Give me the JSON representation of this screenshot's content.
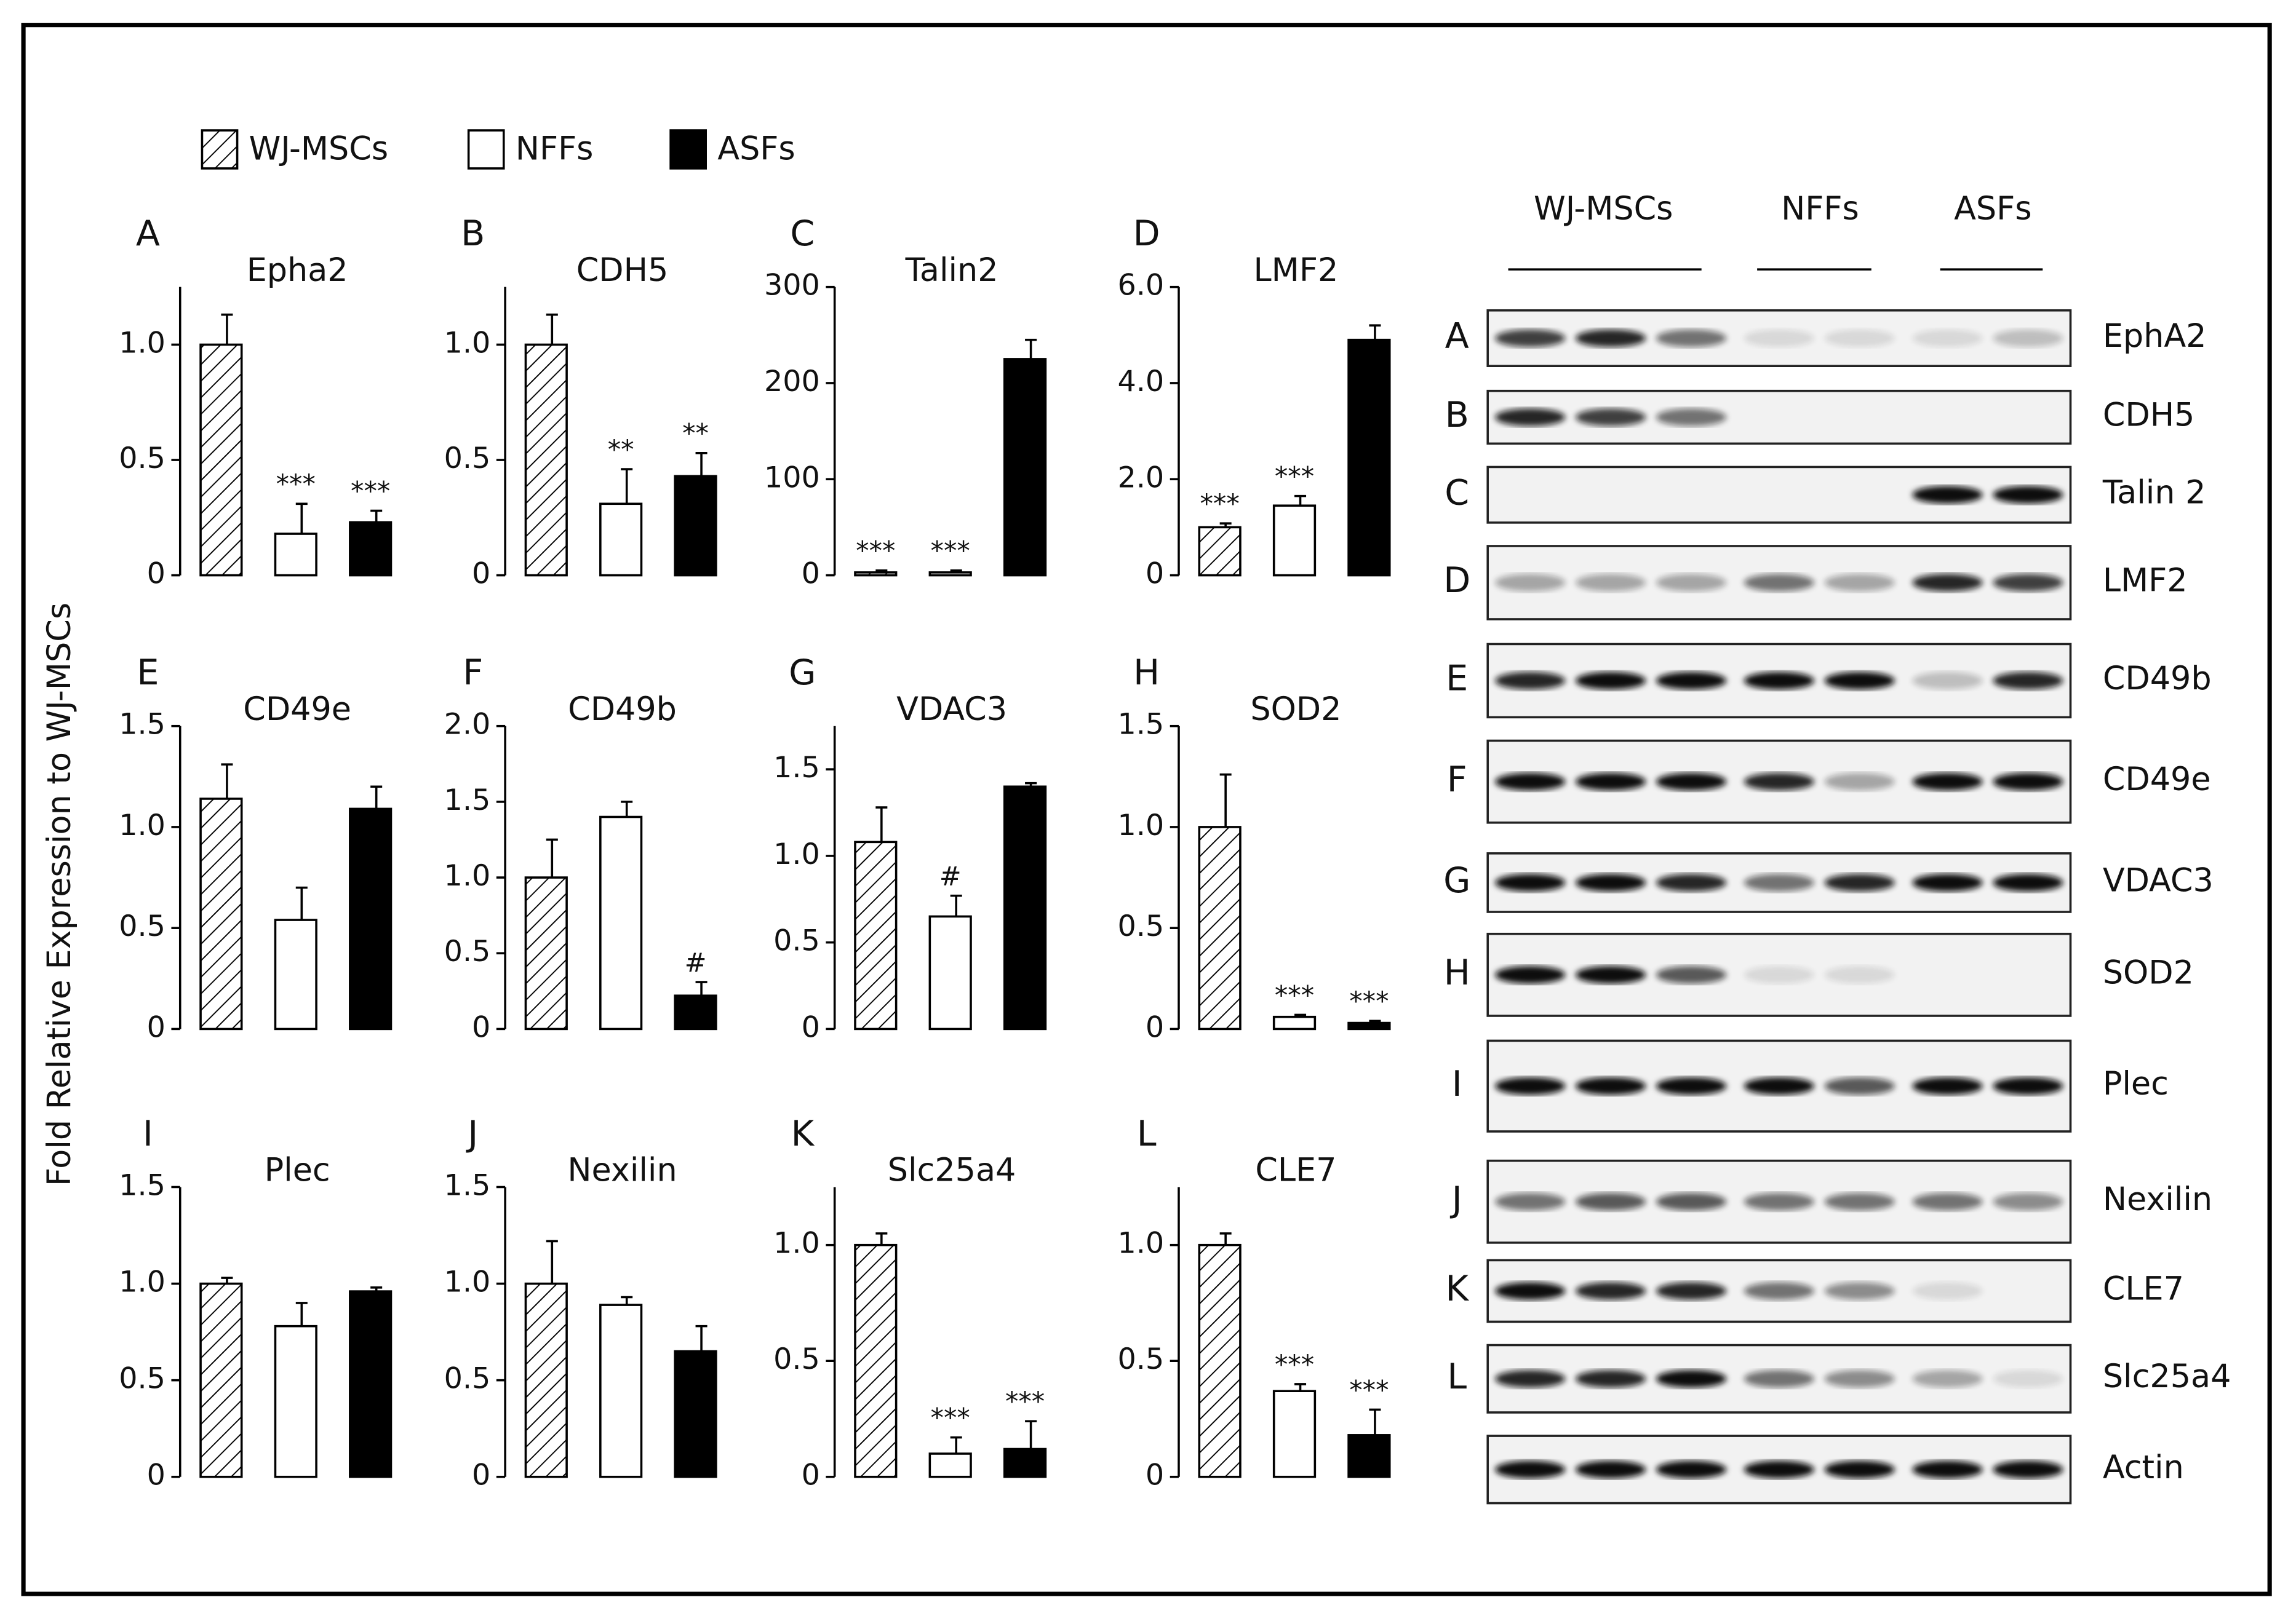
{
  "y_axis_label": "Fold Relative Expression to WJ-MSCs",
  "legend": [
    {
      "name": "WJ-MSCs",
      "fill": "hatch"
    },
    {
      "name": "NFFs",
      "fill": "#ffffff"
    },
    {
      "name": "ASFs",
      "fill": "#000000"
    }
  ],
  "chart_data": [
    {
      "type": "bar",
      "panel": "A",
      "title": "Epha2",
      "values": [
        1.0,
        0.18,
        0.23
      ],
      "errors": [
        0.13,
        0.13,
        0.05
      ],
      "annotations": [
        null,
        "***",
        "***"
      ],
      "ylim": [
        0,
        1.25
      ],
      "yticks": [
        0,
        0.5,
        {
          "value": 1,
          "label": "1.0"
        }
      ]
    },
    {
      "type": "bar",
      "panel": "B",
      "title": "CDH5",
      "values": [
        1.0,
        0.31,
        0.43
      ],
      "errors": [
        0.13,
        0.15,
        0.1
      ],
      "annotations": [
        null,
        "**",
        "**"
      ],
      "ylim": [
        0,
        1.25
      ],
      "yticks": [
        0,
        0.5,
        {
          "value": 1,
          "label": "1.0"
        }
      ]
    },
    {
      "type": "bar",
      "panel": "C",
      "title": "Talin2",
      "values": [
        3,
        3,
        225
      ],
      "errors": [
        2,
        2,
        20
      ],
      "annotations": [
        "***",
        "***",
        null
      ],
      "ylim": [
        0,
        300
      ],
      "yticks": [
        0,
        100,
        200,
        300
      ]
    },
    {
      "type": "bar",
      "panel": "D",
      "title": "LMF2",
      "values": [
        1.0,
        1.45,
        4.9
      ],
      "errors": [
        0.08,
        0.2,
        0.3
      ],
      "annotations": [
        "***",
        "***",
        null
      ],
      "ylim": [
        0,
        6
      ],
      "yticks": [
        0,
        {
          "value": 2,
          "label": "2.0"
        },
        {
          "value": 4,
          "label": "4.0"
        },
        {
          "value": 6,
          "label": "6.0"
        }
      ]
    },
    {
      "type": "bar",
      "panel": "E",
      "title": "CD49e",
      "values": [
        1.14,
        0.54,
        1.09
      ],
      "errors": [
        0.17,
        0.16,
        0.11
      ],
      "annotations": [
        null,
        null,
        null
      ],
      "ylim": [
        0,
        1.5
      ],
      "yticks": [
        0,
        0.5,
        {
          "value": 1,
          "label": "1.0"
        },
        1.5
      ]
    },
    {
      "type": "bar",
      "panel": "F",
      "title": "CD49b",
      "values": [
        1.0,
        1.4,
        0.22
      ],
      "errors": [
        0.25,
        0.1,
        0.09
      ],
      "annotations": [
        null,
        null,
        "#"
      ],
      "ylim": [
        0,
        2
      ],
      "yticks": [
        0,
        0.5,
        {
          "value": 1,
          "label": "1.0"
        },
        1.5,
        {
          "value": 2,
          "label": "2.0"
        }
      ]
    },
    {
      "type": "bar",
      "panel": "G",
      "title": "VDAC3",
      "values": [
        1.08,
        0.65,
        1.4
      ],
      "errors": [
        0.2,
        0.12,
        0.02
      ],
      "annotations": [
        null,
        "#",
        null
      ],
      "ylim": [
        0,
        1.75
      ],
      "yticks": [
        0,
        0.5,
        {
          "value": 1,
          "label": "1.0"
        },
        1.5
      ]
    },
    {
      "type": "bar",
      "panel": "H",
      "title": "SOD2",
      "values": [
        1.0,
        0.06,
        0.03
      ],
      "errors": [
        0.26,
        0.01,
        0.01
      ],
      "annotations": [
        null,
        "***",
        "***"
      ],
      "ylim": [
        0,
        1.5
      ],
      "yticks": [
        0,
        0.5,
        {
          "value": 1,
          "label": "1.0"
        },
        1.5
      ]
    },
    {
      "type": "bar",
      "panel": "I",
      "title": "Plec",
      "values": [
        1.0,
        0.78,
        0.96
      ],
      "errors": [
        0.03,
        0.12,
        0.02
      ],
      "annotations": [
        null,
        null,
        null
      ],
      "ylim": [
        0,
        1.5
      ],
      "yticks": [
        0,
        0.5,
        {
          "value": 1,
          "label": "1.0"
        },
        1.5
      ]
    },
    {
      "type": "bar",
      "panel": "J",
      "title": "Nexilin",
      "values": [
        1.0,
        0.89,
        0.65
      ],
      "errors": [
        0.22,
        0.04,
        0.13
      ],
      "annotations": [
        null,
        null,
        null
      ],
      "ylim": [
        0,
        1.5
      ],
      "yticks": [
        0,
        0.5,
        {
          "value": 1,
          "label": "1.0"
        },
        1.5
      ]
    },
    {
      "type": "bar",
      "panel": "K",
      "title": "Slc25a4",
      "values": [
        1.0,
        0.1,
        0.12
      ],
      "errors": [
        0.05,
        0.07,
        0.12
      ],
      "annotations": [
        null,
        "***",
        "***"
      ],
      "ylim": [
        0,
        1.25
      ],
      "yticks": [
        0,
        0.5,
        {
          "value": 1,
          "label": "1.0"
        }
      ]
    },
    {
      "type": "bar",
      "panel": "L",
      "title": "CLE7",
      "values": [
        1.0,
        0.37,
        0.18
      ],
      "errors": [
        0.05,
        0.03,
        0.11
      ],
      "annotations": [
        null,
        "***",
        "***"
      ],
      "ylim": [
        0,
        1.25
      ],
      "yticks": [
        0,
        0.5,
        {
          "value": 1,
          "label": "1.0"
        }
      ]
    }
  ],
  "blot": {
    "groups": [
      "WJ-MSCs",
      "NFFs",
      "ASFs"
    ],
    "rows": [
      {
        "letter": "A",
        "protein": "EphA2"
      },
      {
        "letter": "B",
        "protein": "CDH5"
      },
      {
        "letter": "C",
        "protein": "Talin 2"
      },
      {
        "letter": "D",
        "protein": "LMF2"
      },
      {
        "letter": "E",
        "protein": "CD49b"
      },
      {
        "letter": "F",
        "protein": "CD49e"
      },
      {
        "letter": "G",
        "protein": "VDAC3"
      },
      {
        "letter": "H",
        "protein": "SOD2"
      },
      {
        "letter": "I",
        "protein": "Plec"
      },
      {
        "letter": "J",
        "protein": "Nexilin"
      },
      {
        "letter": "K",
        "protein": "CLE7"
      },
      {
        "letter": "L",
        "protein": "Slc25a4"
      },
      {
        "letter": null,
        "protein": "Actin"
      }
    ]
  }
}
